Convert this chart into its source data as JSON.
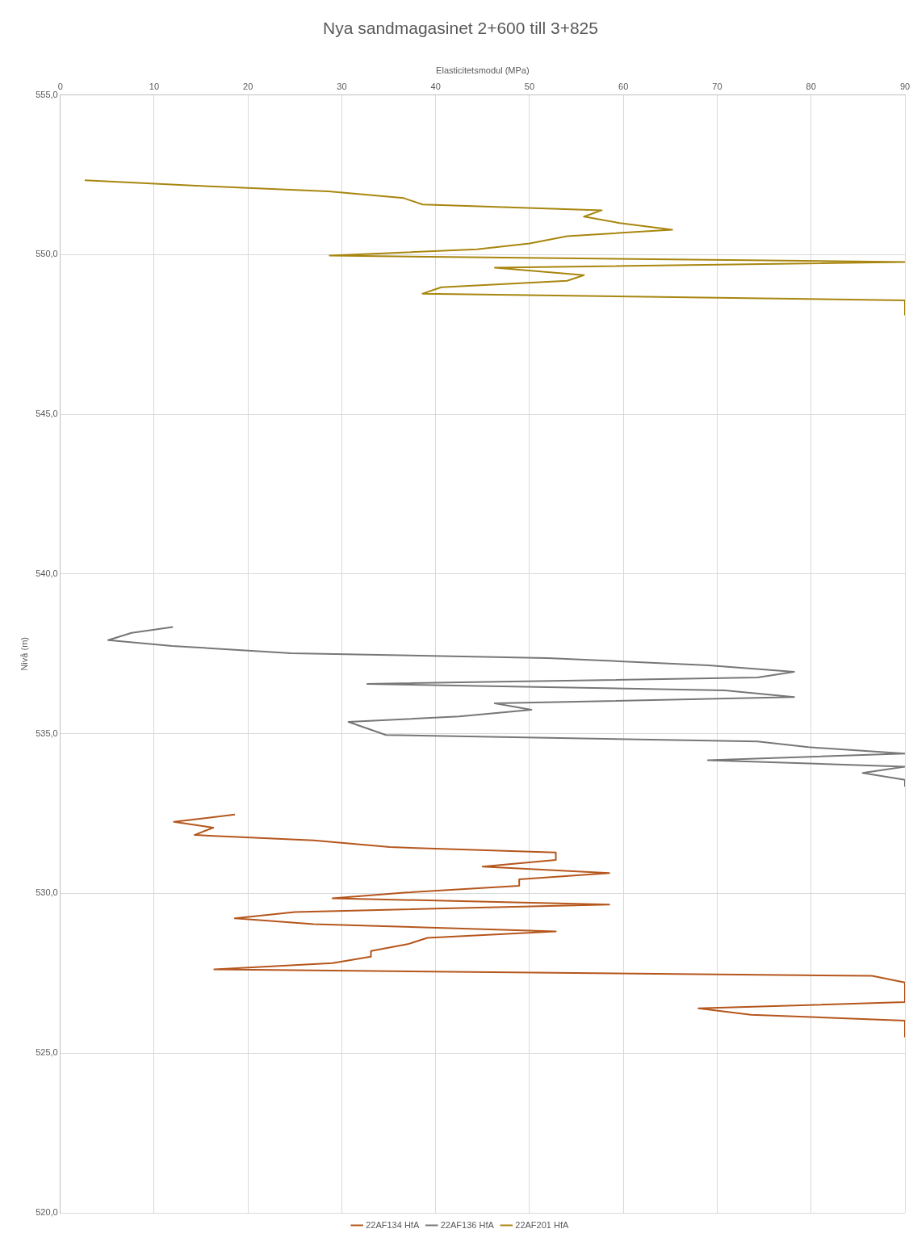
{
  "chart_data": {
    "type": "line",
    "title": "Nya sandmagasinet 2+600 till 3+825",
    "xlabel": "Elasticitetsmodul (MPa)",
    "ylabel": "Nivå (m)",
    "xlim": [
      0,
      90
    ],
    "xticks": [
      0,
      10,
      20,
      30,
      40,
      50,
      60,
      70,
      80,
      90
    ],
    "ylim": [
      520,
      555
    ],
    "yticks": [
      {
        "value": 520,
        "label": "520,0"
      },
      {
        "value": 525,
        "label": "525,0"
      },
      {
        "value": 530,
        "label": "530,0"
      },
      {
        "value": 535,
        "label": "535,0"
      },
      {
        "value": 540,
        "label": "540,0"
      },
      {
        "value": 545,
        "label": "545,0"
      },
      {
        "value": 550,
        "label": "550,0"
      },
      {
        "value": 555,
        "label": "555,0"
      }
    ],
    "grid": true,
    "legend": "bottom",
    "marker": "none",
    "line_style": "solid",
    "series": [
      {
        "name": "22AF134 HfA",
        "color": "#b5561c",
        "x": [
          18.6,
          12.1,
          16.3,
          14.3,
          27.0,
          35.1,
          52.8,
          52.8,
          45.0,
          58.5,
          48.9,
          48.9,
          36.9,
          29.0,
          58.5,
          25.0,
          18.6,
          27.0,
          52.8,
          39.1,
          37.0,
          33.1,
          33.1,
          29.0,
          16.4,
          86.5,
          90,
          90,
          68.0,
          73.6,
          90,
          90
        ],
        "values": [
          532.47,
          532.24,
          532.06,
          531.83,
          531.66,
          531.45,
          531.28,
          531.05,
          530.84,
          530.64,
          530.44,
          530.24,
          530.03,
          529.85,
          529.65,
          529.42,
          529.22,
          529.04,
          528.81,
          528.61,
          528.41,
          528.2,
          528.02,
          527.82,
          527.62,
          527.42,
          527.21,
          526.6,
          526.4,
          526.2,
          526.02,
          525.51
        ]
      },
      {
        "name": "22AF136 HfA",
        "color": "#777777",
        "x": [
          12.0,
          7.6,
          5.1,
          11.9,
          24.6,
          51.9,
          69.1,
          78.2,
          74.3,
          32.7,
          70.8,
          78.2,
          46.3,
          50.2,
          42.5,
          30.7,
          34.7,
          74.3,
          79.7,
          90,
          69.0,
          90,
          85.5,
          90,
          90
        ],
        "values": [
          538.34,
          538.16,
          537.93,
          537.75,
          537.52,
          537.37,
          537.14,
          536.94,
          536.76,
          536.56,
          536.36,
          536.15,
          535.95,
          535.75,
          535.54,
          535.37,
          534.96,
          534.76,
          534.58,
          534.38,
          534.17,
          533.97,
          533.77,
          533.56,
          533.36
        ]
      },
      {
        "name": "22AF201 HfA",
        "color": "#a8860f",
        "x": [
          2.6,
          14.5,
          28.6,
          36.6,
          38.6,
          57.7,
          55.8,
          59.6,
          65.2,
          54.0,
          50.0,
          44.4,
          28.7,
          90,
          46.3,
          55.8,
          54.0,
          40.6,
          38.6,
          90,
          90
        ],
        "values": [
          552.33,
          552.16,
          551.98,
          551.77,
          551.57,
          551.39,
          551.19,
          550.99,
          550.78,
          550.58,
          550.35,
          550.17,
          549.97,
          549.77,
          549.59,
          549.36,
          549.18,
          548.98,
          548.78,
          548.57,
          548.12
        ]
      }
    ]
  }
}
